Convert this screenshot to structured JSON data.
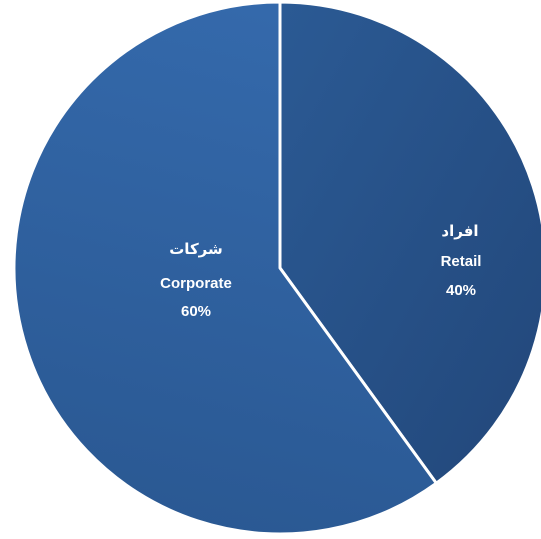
{
  "chart_data": {
    "type": "pie",
    "slices": [
      {
        "label_ar": "افراد",
        "label_en": "Retail",
        "value": 40,
        "value_label": "40%",
        "color": "#2a568d"
      },
      {
        "label_ar": "شركات",
        "label_en": "Corporate",
        "value": 60,
        "value_label": "60%",
        "color": "#2e5e9b"
      }
    ],
    "start": "12 o'clock",
    "direction": "clockwise",
    "slice_border_color": "#ffffff",
    "legend": "none"
  }
}
